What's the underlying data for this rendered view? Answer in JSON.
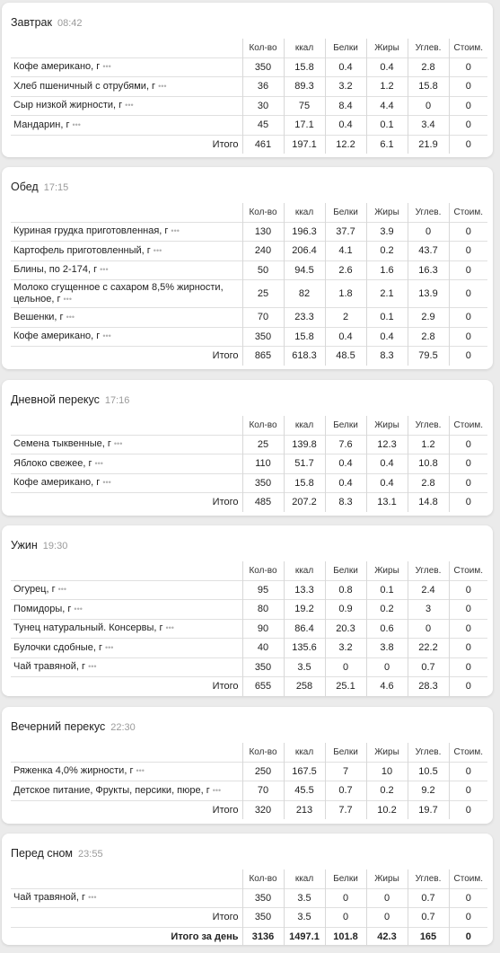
{
  "columns": [
    "Кол-во",
    "ккал",
    "Белки",
    "Жиры",
    "Углев.",
    "Стоим."
  ],
  "more_icon": "•••",
  "total_label": "Итого",
  "day_total_label": "Итого за день",
  "meals": [
    {
      "title": "Завтрак",
      "time": "08:42",
      "items": [
        {
          "name": "Кофе американо, г",
          "qty": "350",
          "kcal": "15.8",
          "protein": "0.4",
          "fat": "0.4",
          "carbs": "2.8",
          "cost": "0"
        },
        {
          "name": "Хлеб пшеничный с отрубями, г",
          "qty": "36",
          "kcal": "89.3",
          "protein": "3.2",
          "fat": "1.2",
          "carbs": "15.8",
          "cost": "0"
        },
        {
          "name": "Сыр низкой жирности, г",
          "qty": "30",
          "kcal": "75",
          "protein": "8.4",
          "fat": "4.4",
          "carbs": "0",
          "cost": "0"
        },
        {
          "name": "Мандарин, г",
          "qty": "45",
          "kcal": "17.1",
          "protein": "0.4",
          "fat": "0.1",
          "carbs": "3.4",
          "cost": "0"
        }
      ],
      "total": {
        "qty": "461",
        "kcal": "197.1",
        "protein": "12.2",
        "fat": "6.1",
        "carbs": "21.9",
        "cost": "0"
      }
    },
    {
      "title": "Обед",
      "time": "17:15",
      "items": [
        {
          "name": "Куриная грудка приготовленная, г",
          "qty": "130",
          "kcal": "196.3",
          "protein": "37.7",
          "fat": "3.9",
          "carbs": "0",
          "cost": "0"
        },
        {
          "name": "Картофель приготовленный, г",
          "qty": "240",
          "kcal": "206.4",
          "protein": "4.1",
          "fat": "0.2",
          "carbs": "43.7",
          "cost": "0"
        },
        {
          "name": "Блины, по 2-174, г",
          "qty": "50",
          "kcal": "94.5",
          "protein": "2.6",
          "fat": "1.6",
          "carbs": "16.3",
          "cost": "0"
        },
        {
          "name": "Молоко сгущенное с сахаром 8,5% жирности, цельное, г",
          "qty": "25",
          "kcal": "82",
          "protein": "1.8",
          "fat": "2.1",
          "carbs": "13.9",
          "cost": "0"
        },
        {
          "name": "Вешенки, г",
          "qty": "70",
          "kcal": "23.3",
          "protein": "2",
          "fat": "0.1",
          "carbs": "2.9",
          "cost": "0"
        },
        {
          "name": "Кофе американо, г",
          "qty": "350",
          "kcal": "15.8",
          "protein": "0.4",
          "fat": "0.4",
          "carbs": "2.8",
          "cost": "0"
        }
      ],
      "total": {
        "qty": "865",
        "kcal": "618.3",
        "protein": "48.5",
        "fat": "8.3",
        "carbs": "79.5",
        "cost": "0"
      }
    },
    {
      "title": "Дневной перекус",
      "time": "17:16",
      "items": [
        {
          "name": "Семена тыквенные, г",
          "qty": "25",
          "kcal": "139.8",
          "protein": "7.6",
          "fat": "12.3",
          "carbs": "1.2",
          "cost": "0"
        },
        {
          "name": "Яблоко свежее, г",
          "qty": "110",
          "kcal": "51.7",
          "protein": "0.4",
          "fat": "0.4",
          "carbs": "10.8",
          "cost": "0"
        },
        {
          "name": "Кофе американо, г",
          "qty": "350",
          "kcal": "15.8",
          "protein": "0.4",
          "fat": "0.4",
          "carbs": "2.8",
          "cost": "0"
        }
      ],
      "total": {
        "qty": "485",
        "kcal": "207.2",
        "protein": "8.3",
        "fat": "13.1",
        "carbs": "14.8",
        "cost": "0"
      }
    },
    {
      "title": "Ужин",
      "time": "19:30",
      "items": [
        {
          "name": "Огурец, г",
          "qty": "95",
          "kcal": "13.3",
          "protein": "0.8",
          "fat": "0.1",
          "carbs": "2.4",
          "cost": "0"
        },
        {
          "name": "Помидоры, г",
          "qty": "80",
          "kcal": "19.2",
          "protein": "0.9",
          "fat": "0.2",
          "carbs": "3",
          "cost": "0"
        },
        {
          "name": "Тунец натуральный. Консервы, г",
          "qty": "90",
          "kcal": "86.4",
          "protein": "20.3",
          "fat": "0.6",
          "carbs": "0",
          "cost": "0"
        },
        {
          "name": "Булочки сдобные, г",
          "qty": "40",
          "kcal": "135.6",
          "protein": "3.2",
          "fat": "3.8",
          "carbs": "22.2",
          "cost": "0"
        },
        {
          "name": "Чай травяной, г",
          "qty": "350",
          "kcal": "3.5",
          "protein": "0",
          "fat": "0",
          "carbs": "0.7",
          "cost": "0"
        }
      ],
      "total": {
        "qty": "655",
        "kcal": "258",
        "protein": "25.1",
        "fat": "4.6",
        "carbs": "28.3",
        "cost": "0"
      }
    },
    {
      "title": "Вечерний перекус",
      "time": "22:30",
      "items": [
        {
          "name": "Ряженка 4,0% жирности, г",
          "qty": "250",
          "kcal": "167.5",
          "protein": "7",
          "fat": "10",
          "carbs": "10.5",
          "cost": "0"
        },
        {
          "name": "Детское питание, Фрукты, персики, пюре, г",
          "qty": "70",
          "kcal": "45.5",
          "protein": "0.7",
          "fat": "0.2",
          "carbs": "9.2",
          "cost": "0"
        }
      ],
      "total": {
        "qty": "320",
        "kcal": "213",
        "protein": "7.7",
        "fat": "10.2",
        "carbs": "19.7",
        "cost": "0"
      }
    },
    {
      "title": "Перед сном",
      "time": "23:55",
      "items": [
        {
          "name": "Чай травяной, г",
          "qty": "350",
          "kcal": "3.5",
          "protein": "0",
          "fat": "0",
          "carbs": "0.7",
          "cost": "0"
        }
      ],
      "total": {
        "qty": "350",
        "kcal": "3.5",
        "protein": "0",
        "fat": "0",
        "carbs": "0.7",
        "cost": "0"
      }
    }
  ],
  "day_total": {
    "qty": "3136",
    "kcal": "1497.1",
    "protein": "101.8",
    "fat": "42.3",
    "carbs": "165",
    "cost": "0"
  }
}
